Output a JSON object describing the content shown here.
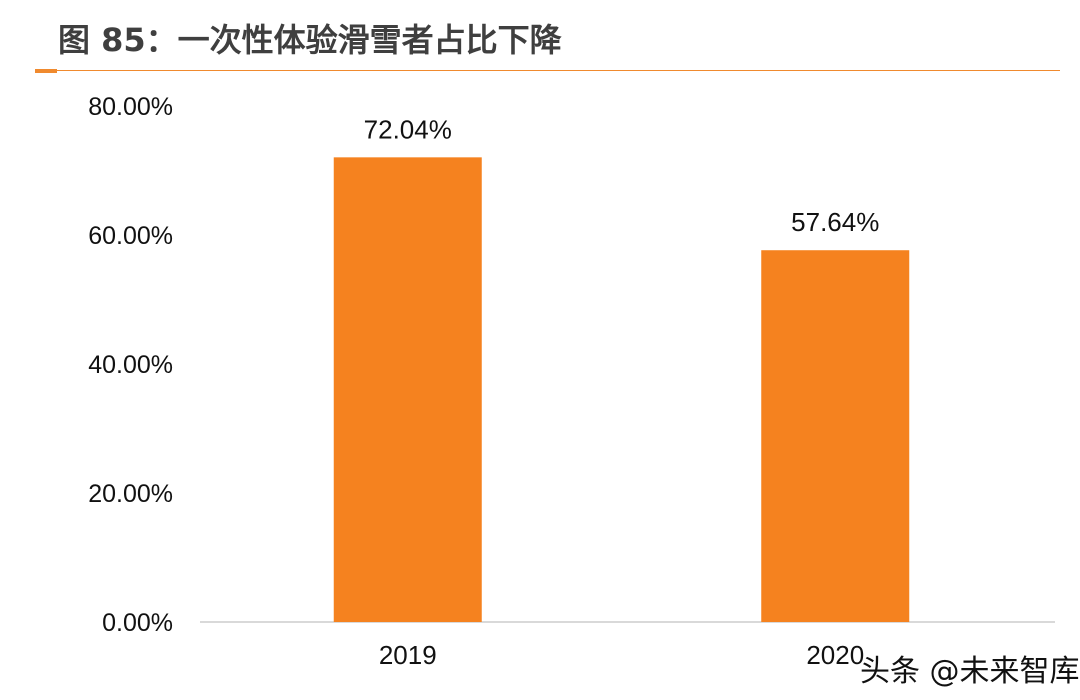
{
  "chart_data": {
    "type": "bar",
    "title": "图 85：一次性体验滑雪者占比下降",
    "categories": [
      "2019",
      "2020"
    ],
    "values": [
      72.04,
      57.64
    ],
    "data_labels": [
      "72.04%",
      "57.64%"
    ],
    "ylim": [
      0,
      80
    ],
    "yticks": [
      0,
      20,
      40,
      60,
      80
    ],
    "ytick_labels": [
      "0.00%",
      "20.00%",
      "40.00%",
      "60.00%",
      "80.00%"
    ],
    "xlabel": "",
    "ylabel": "",
    "grid": false,
    "legend": "none"
  },
  "watermark": "头条 @未来智库",
  "colors": {
    "bar": "#f5821f",
    "accent": "#f08a2e",
    "axis": "#d9d9d9",
    "text": "#111111",
    "title": "#3f3f3f"
  }
}
